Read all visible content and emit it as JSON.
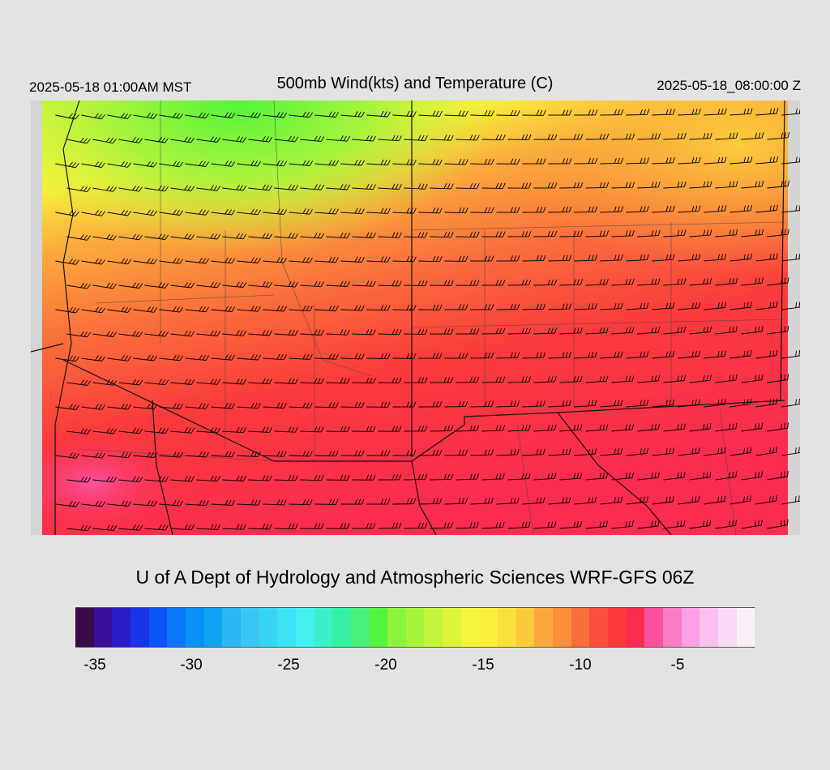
{
  "header": {
    "local_time": "2025-05-18 01:00AM MST",
    "title": "500mb Wind(kts) and Temperature (C)",
    "valid_time": "2025-05-18_08:00:00 Z"
  },
  "credit": "U of A Dept of Hydrology and Atmospheric Sciences WRF-GFS 06Z",
  "colorbar": {
    "colors": [
      "#3a0a4a",
      "#3c0d9a",
      "#2a1dc7",
      "#1a35e6",
      "#0a55f5",
      "#0a78f8",
      "#0a90f6",
      "#12a2f4",
      "#2cb6f4",
      "#3cc6f4",
      "#38d4f4",
      "#3ce2f4",
      "#44f0f0",
      "#3cf0c8",
      "#34f0a0",
      "#4af07a",
      "#52f43c",
      "#8cf43c",
      "#a8f43c",
      "#c4f43c",
      "#ddf43c",
      "#f6f43c",
      "#faf03c",
      "#fae03c",
      "#facc3c",
      "#faa83c",
      "#fa903c",
      "#fa6e3c",
      "#fa503c",
      "#fa3a3c",
      "#fa2c50",
      "#fa52a0",
      "#fa7cc8",
      "#faa0e8",
      "#fac0ee",
      "#fadaf4",
      "#fcf0f8"
    ],
    "tick_labels": [
      "-35",
      "-30",
      "-25",
      "-20",
      "-15",
      "-10",
      "-5"
    ]
  }
}
